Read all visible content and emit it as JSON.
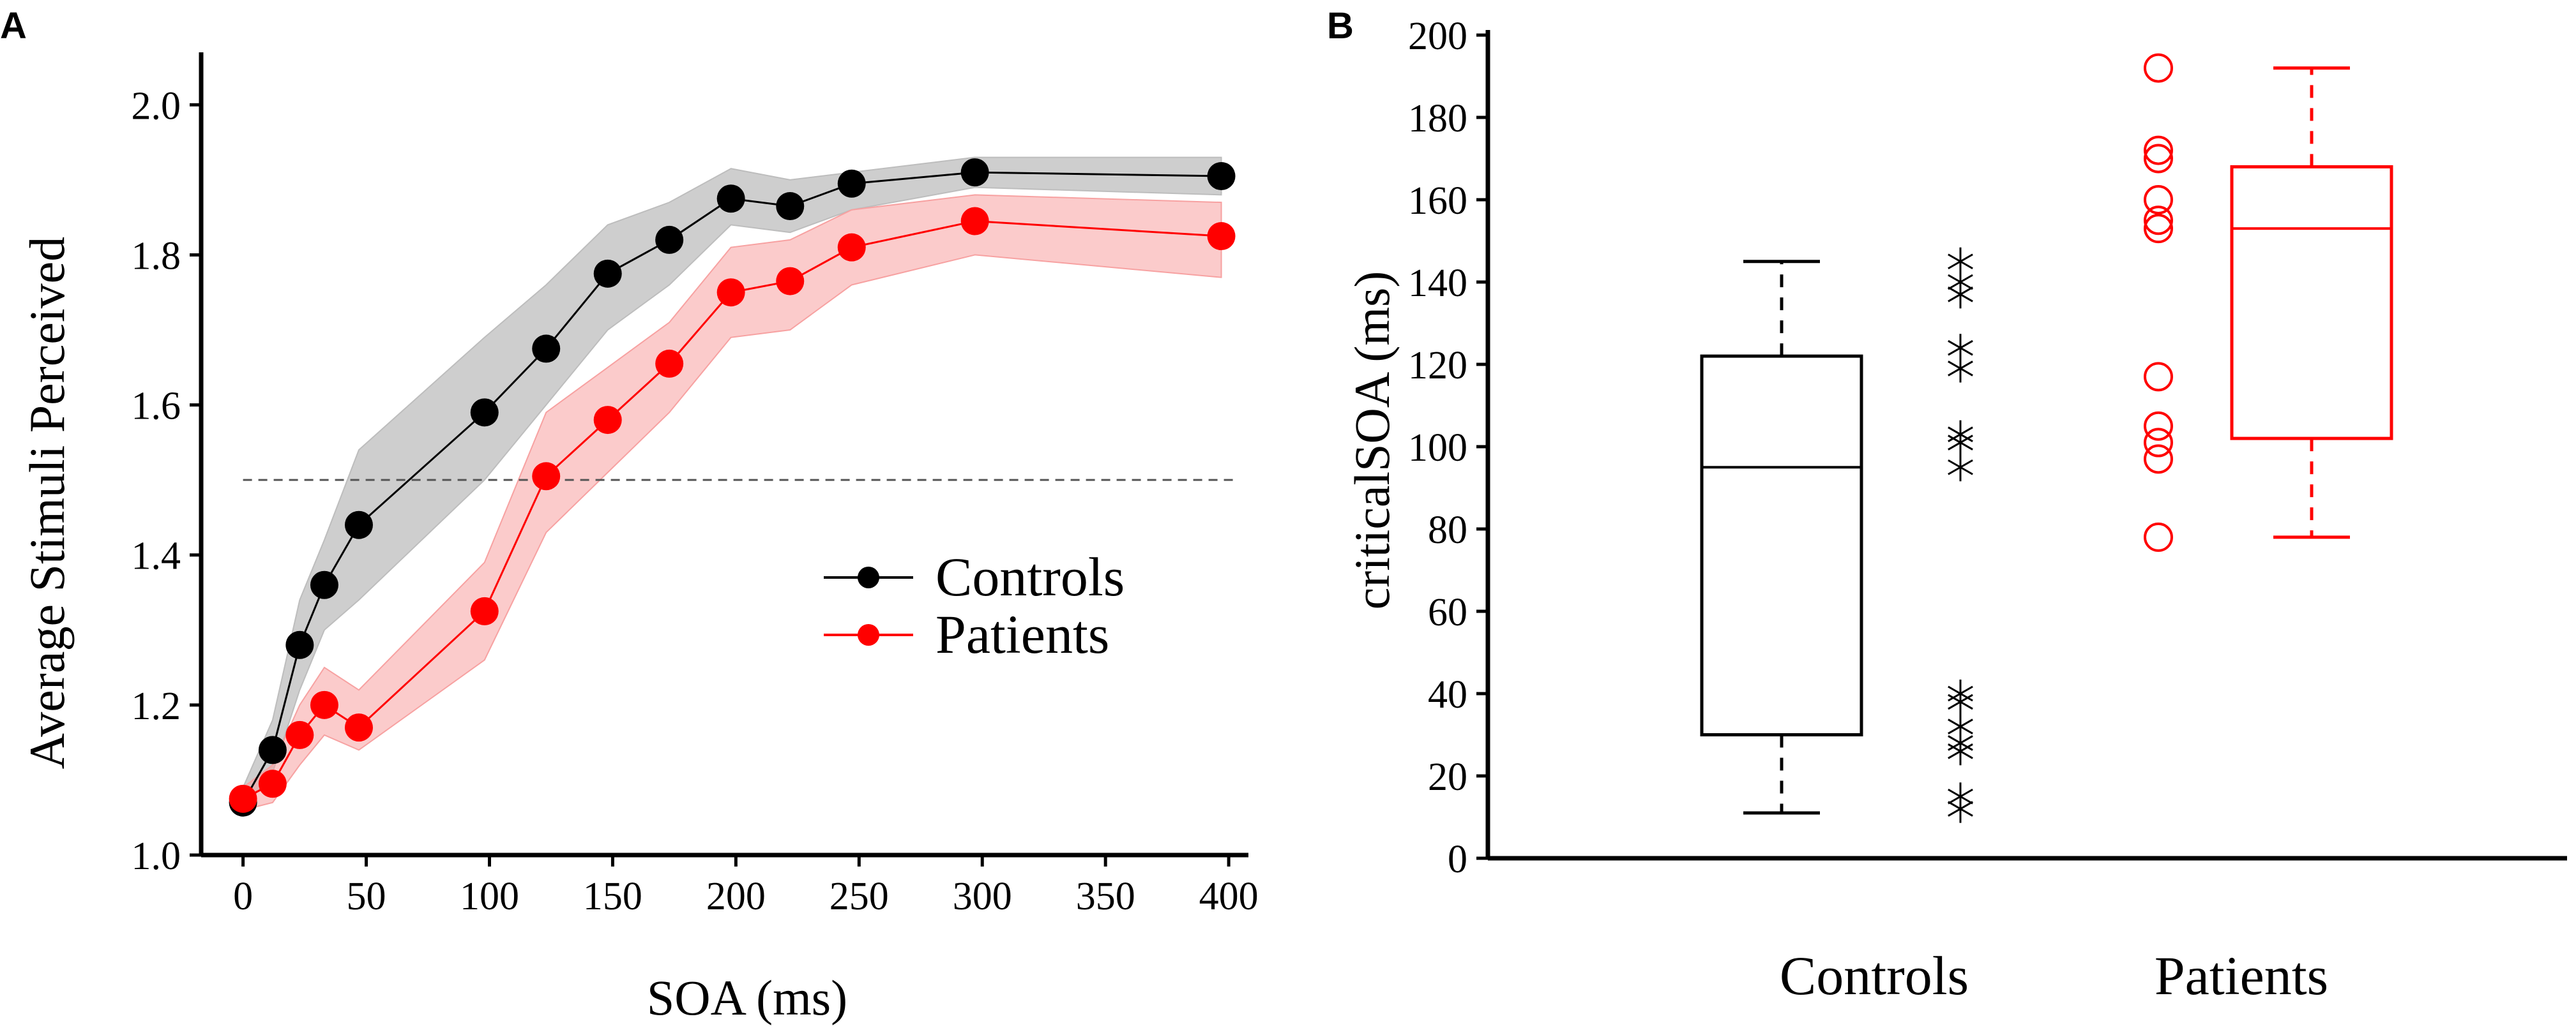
{
  "colors": {
    "controls": "#000000",
    "patients": "#ff0000",
    "controls_band": "#bdbdbd",
    "patients_band": "#f7a1a1"
  },
  "chart_data": [
    {
      "panel": "A",
      "type": "line",
      "xlabel": "SOA (ms)",
      "ylabel": "Average Stimuli Perceived",
      "xlim": [
        -17,
        408
      ],
      "ylim": [
        1.0,
        2.07
      ],
      "xticks": [
        "0",
        "50",
        "100",
        "150",
        "200",
        "250",
        "300",
        "350",
        "400"
      ],
      "yticks": [
        "1.0",
        "1.2",
        "1.4",
        "1.6",
        "1.8",
        "2.0"
      ],
      "reference_line": {
        "y": 1.5,
        "style": "dashed"
      },
      "legend_position": "center-right",
      "series": [
        {
          "name": "Controls",
          "color": "#000000",
          "x": [
            0,
            12,
            23,
            33,
            47,
            98,
            123,
            148,
            173,
            198,
            222,
            247,
            297,
            397
          ],
          "y": [
            1.07,
            1.14,
            1.28,
            1.36,
            1.44,
            1.59,
            1.675,
            1.775,
            1.82,
            1.875,
            1.865,
            1.895,
            1.91,
            1.905
          ],
          "lower": [
            1.06,
            1.11,
            1.22,
            1.3,
            1.34,
            1.5,
            1.6,
            1.7,
            1.76,
            1.84,
            1.83,
            1.86,
            1.89,
            1.88
          ],
          "upper": [
            1.09,
            1.18,
            1.34,
            1.42,
            1.54,
            1.69,
            1.76,
            1.84,
            1.87,
            1.915,
            1.9,
            1.91,
            1.93,
            1.93
          ]
        },
        {
          "name": "Patients",
          "color": "#ff0000",
          "x": [
            0,
            12,
            23,
            33,
            47,
            98,
            123,
            148,
            173,
            198,
            222,
            247,
            297,
            397
          ],
          "y": [
            1.075,
            1.095,
            1.16,
            1.2,
            1.17,
            1.325,
            1.505,
            1.58,
            1.655,
            1.75,
            1.765,
            1.81,
            1.845,
            1.825
          ],
          "lower": [
            1.06,
            1.07,
            1.12,
            1.16,
            1.14,
            1.26,
            1.43,
            1.51,
            1.59,
            1.69,
            1.7,
            1.76,
            1.8,
            1.77
          ],
          "upper": [
            1.09,
            1.12,
            1.2,
            1.25,
            1.22,
            1.39,
            1.59,
            1.65,
            1.71,
            1.81,
            1.82,
            1.86,
            1.88,
            1.87
          ]
        }
      ]
    },
    {
      "panel": "B",
      "type": "box",
      "ylabel": "criticalSOA (ms)",
      "ylim": [
        0,
        200
      ],
      "yticks": [
        "0",
        "20",
        "40",
        "60",
        "80",
        "100",
        "120",
        "140",
        "160",
        "180",
        "200"
      ],
      "categories": [
        "Controls",
        "Patients"
      ],
      "boxes": [
        {
          "name": "Controls",
          "color": "#000000",
          "whisker_low": 11,
          "q1": 30,
          "median": 95,
          "q3": 122,
          "whisker_high": 145,
          "points_marker": "asterisk",
          "points": [
            12,
            15,
            26,
            28,
            32,
            38,
            40,
            95,
            101,
            103,
            119,
            124,
            137,
            140,
            145
          ]
        },
        {
          "name": "Patients",
          "color": "#ff0000",
          "whisker_low": 78,
          "q1": 102,
          "median": 153,
          "q3": 168,
          "whisker_high": 192,
          "points_marker": "circle",
          "points": [
            78,
            97,
            101,
            105,
            117,
            153,
            155,
            160,
            170,
            172,
            192
          ]
        }
      ]
    }
  ]
}
